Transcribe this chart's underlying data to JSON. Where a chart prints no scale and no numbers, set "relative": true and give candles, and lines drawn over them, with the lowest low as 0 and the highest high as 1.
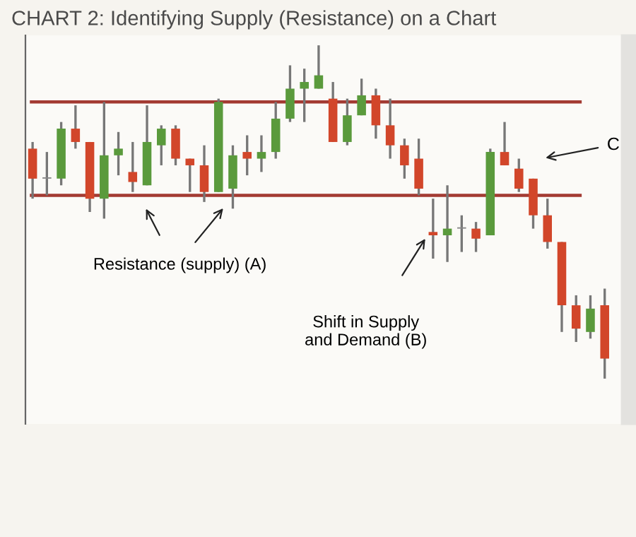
{
  "chart_data": {
    "type": "candlestick",
    "title": "CHART 2: Identifying Supply (Resistance) on a Chart",
    "relative": true,
    "categories": [
      null,
      null,
      null,
      null,
      null,
      null,
      null,
      null,
      null,
      null,
      null,
      null,
      null,
      null,
      null,
      null,
      null,
      null,
      null,
      null,
      null,
      null,
      null,
      null,
      null,
      null,
      null,
      null,
      null,
      null,
      null,
      null,
      null,
      null,
      null,
      null,
      null,
      null,
      null,
      null,
      null
    ],
    "ohlc": [
      [
        0.69,
        0.71,
        0.54,
        0.6
      ],
      [
        0.6,
        0.68,
        0.55,
        0.6
      ],
      [
        0.6,
        0.77,
        0.58,
        0.75
      ],
      [
        0.75,
        0.82,
        0.69,
        0.71
      ],
      [
        0.71,
        0.71,
        0.5,
        0.54
      ],
      [
        0.54,
        0.83,
        0.48,
        0.67
      ],
      [
        0.67,
        0.74,
        0.61,
        0.69
      ],
      [
        0.62,
        0.71,
        0.56,
        0.59
      ],
      [
        0.58,
        0.82,
        0.58,
        0.71
      ],
      [
        0.7,
        0.76,
        0.64,
        0.75
      ],
      [
        0.75,
        0.76,
        0.64,
        0.66
      ],
      [
        0.66,
        0.66,
        0.56,
        0.64
      ],
      [
        0.64,
        0.7,
        0.53,
        0.56
      ],
      [
        0.56,
        0.84,
        0.56,
        0.83
      ],
      [
        0.57,
        0.7,
        0.51,
        0.67
      ],
      [
        0.68,
        0.73,
        0.61,
        0.66
      ],
      [
        0.66,
        0.73,
        0.62,
        0.68
      ],
      [
        0.68,
        0.83,
        0.66,
        0.78
      ],
      [
        0.78,
        0.94,
        0.77,
        0.87
      ],
      [
        0.87,
        0.93,
        0.77,
        0.89
      ],
      [
        0.87,
        1.0,
        0.87,
        0.91
      ],
      [
        0.84,
        0.89,
        0.71,
        0.71
      ],
      [
        0.71,
        0.84,
        0.7,
        0.79
      ],
      [
        0.79,
        0.9,
        0.79,
        0.85
      ],
      [
        0.85,
        0.87,
        0.72,
        0.76
      ],
      [
        0.76,
        0.84,
        0.66,
        0.7
      ],
      [
        0.7,
        0.72,
        0.6,
        0.64
      ],
      [
        0.66,
        0.72,
        0.55,
        0.57
      ],
      [
        0.44,
        0.54,
        0.36,
        0.43
      ],
      [
        0.43,
        0.58,
        0.35,
        0.45
      ],
      [
        0.45,
        0.49,
        0.38,
        0.45
      ],
      [
        0.45,
        0.47,
        0.38,
        0.42
      ],
      [
        0.43,
        0.69,
        0.43,
        0.68
      ],
      [
        0.68,
        0.77,
        0.64,
        0.64
      ],
      [
        0.63,
        0.66,
        0.56,
        0.57
      ],
      [
        0.6,
        0.6,
        0.45,
        0.49
      ],
      [
        0.49,
        0.54,
        0.39,
        0.41
      ],
      [
        0.41,
        0.41,
        0.14,
        0.22
      ],
      [
        0.22,
        0.25,
        0.11,
        0.15
      ],
      [
        0.14,
        0.25,
        0.12,
        0.21
      ],
      [
        0.22,
        0.27,
        0.0,
        0.06
      ]
    ],
    "colors": [
      "#d2462a",
      "#888888",
      "#5a9a3c",
      "#d2462a",
      "#d2462a",
      "#5a9a3c",
      "#5a9a3c",
      "#d2462a",
      "#5a9a3c",
      "#5a9a3c",
      "#d2462a",
      "#d2462a",
      "#d2462a",
      "#5a9a3c",
      "#5a9a3c",
      "#d2462a",
      "#5a9a3c",
      "#5a9a3c",
      "#5a9a3c",
      "#5a9a3c",
      "#5a9a3c",
      "#d2462a",
      "#5a9a3c",
      "#5a9a3c",
      "#d2462a",
      "#d2462a",
      "#d2462a",
      "#d2462a",
      "#d2462a",
      "#5a9a3c",
      "#888888",
      "#d2462a",
      "#5a9a3c",
      "#d2462a",
      "#d2462a",
      "#d2462a",
      "#d2462a",
      "#d2462a",
      "#d2462a",
      "#5a9a3c",
      "#d2462a"
    ],
    "ref_lines": [
      {
        "axis": "y",
        "value": 0.83,
        "color": "#a33a32"
      },
      {
        "axis": "y",
        "value": 0.55,
        "color": "#a33a32"
      }
    ],
    "annotations": [
      "Resistance (supply) (A)",
      "Shift in Supply\nand Demand (B)",
      "C"
    ]
  }
}
